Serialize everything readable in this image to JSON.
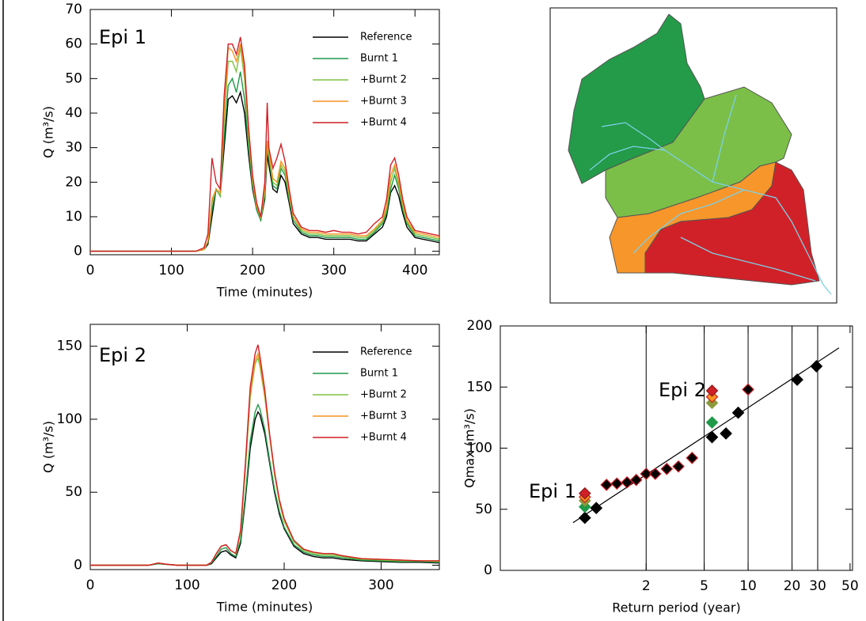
{
  "chart_data": [
    {
      "type": "line",
      "xlabel": "Time (minutes)",
      "ylabel": "Q (m³/s)",
      "annotations": [
        "Epi 1"
      ],
      "xlim": [
        0,
        430
      ],
      "xticks": [
        0,
        100,
        200,
        300,
        400
      ],
      "ylim": [
        -1,
        70
      ],
      "yticks": [
        0,
        10,
        20,
        30,
        40,
        50,
        60,
        70
      ],
      "x": [
        0,
        100,
        130,
        140,
        145,
        150,
        155,
        160,
        165,
        170,
        175,
        180,
        185,
        190,
        195,
        200,
        205,
        210,
        215,
        218,
        220,
        225,
        230,
        235,
        240,
        245,
        250,
        260,
        270,
        280,
        290,
        300,
        310,
        320,
        330,
        340,
        350,
        360,
        365,
        370,
        375,
        380,
        385,
        390,
        400,
        410,
        420,
        430
      ],
      "series": [
        {
          "name": "Reference",
          "color": "#000000",
          "values": [
            0,
            0,
            0,
            0.5,
            2,
            10,
            18,
            16,
            30,
            44,
            45,
            43,
            46,
            40,
            28,
            18,
            12,
            9,
            15,
            28,
            25,
            18,
            17,
            22,
            20,
            14,
            8,
            5,
            4,
            4,
            3.5,
            3.5,
            3.5,
            3.5,
            3,
            3,
            5,
            7,
            10,
            17,
            19,
            16,
            11,
            7,
            4,
            3.5,
            3,
            2.5
          ]
        },
        {
          "name": "Burnt 1",
          "color": "#1e9a48",
          "values": [
            0,
            0,
            0,
            0.5,
            2.5,
            12,
            18,
            16,
            33,
            48,
            50,
            46,
            52,
            44,
            30,
            19,
            12,
            9,
            16,
            30,
            27,
            19,
            18,
            24,
            22,
            15,
            9,
            5.5,
            4.5,
            4.5,
            4,
            4,
            4,
            4,
            3.5,
            3.5,
            5.5,
            8,
            11,
            18,
            22,
            18,
            12,
            8,
            4.5,
            4,
            3.5,
            3
          ]
        },
        {
          "name": "+Burnt 2",
          "color": "#7dc242",
          "values": [
            0,
            0,
            0,
            0.5,
            3,
            14,
            18,
            16,
            38,
            55,
            55,
            52,
            59,
            50,
            33,
            20,
            13,
            9.5,
            17,
            31,
            28,
            20,
            19,
            25,
            23,
            16,
            10,
            6,
            5,
            5,
            4.5,
            4.5,
            4.5,
            4.5,
            4,
            4,
            6,
            8.5,
            12,
            20,
            24,
            19,
            13,
            8.5,
            5,
            4.5,
            4,
            3.5
          ]
        },
        {
          "name": "+Burnt 3",
          "color": "#f7941d",
          "values": [
            0,
            0,
            0,
            0.5,
            3,
            15,
            18,
            17,
            40,
            59,
            58,
            55,
            60,
            52,
            35,
            21,
            13,
            10,
            18,
            32,
            29,
            21,
            20,
            26,
            24,
            17,
            10,
            6.5,
            5.5,
            5.5,
            5,
            5,
            5,
            5,
            4.5,
            4.5,
            6.5,
            9,
            13,
            22,
            25,
            20,
            14,
            9,
            5.5,
            5,
            4.5,
            4
          ]
        },
        {
          "name": "+Burnt 4",
          "color": "#d01f26",
          "values": [
            0,
            0,
            0,
            1,
            5,
            27,
            20,
            18,
            45,
            60,
            60,
            57,
            62,
            54,
            36,
            22,
            14,
            10,
            20,
            43,
            30,
            24,
            27,
            31,
            26,
            18,
            11,
            7,
            6,
            6,
            5.5,
            6,
            5.5,
            5.5,
            5,
            5.5,
            8,
            10,
            15,
            25,
            27,
            22,
            15,
            10,
            6,
            5.5,
            5,
            4.5
          ]
        }
      ]
    },
    {
      "type": "line",
      "xlabel": "Time (minutes)",
      "ylabel": "Q (m³/s)",
      "annotations": [
        "Epi 2"
      ],
      "xlim": [
        0,
        360
      ],
      "xticks": [
        0,
        100,
        200,
        300
      ],
      "ylim": [
        -3,
        165
      ],
      "yticks": [
        0,
        50,
        100,
        150
      ],
      "x": [
        0,
        60,
        70,
        80,
        90,
        100,
        120,
        125,
        130,
        135,
        140,
        145,
        150,
        155,
        160,
        165,
        170,
        173,
        175,
        180,
        185,
        190,
        195,
        200,
        210,
        220,
        230,
        240,
        250,
        260,
        280,
        300,
        320,
        340,
        360
      ],
      "series": [
        {
          "name": "Reference",
          "color": "#000000",
          "values": [
            0,
            0,
            1,
            0.5,
            0,
            0,
            0,
            1,
            5,
            9,
            10,
            7,
            5,
            15,
            45,
            80,
            100,
            105,
            103,
            90,
            70,
            50,
            35,
            25,
            13,
            8,
            6,
            5,
            5,
            4,
            3,
            2.5,
            2,
            2,
            1.5
          ]
        },
        {
          "name": "Burnt 1",
          "color": "#1e9a48",
          "values": [
            0,
            0,
            1,
            0.5,
            0,
            0,
            0,
            1.5,
            6,
            11,
            12,
            8,
            6,
            17,
            48,
            85,
            105,
            110,
            107,
            93,
            72,
            52,
            37,
            26,
            14,
            9,
            7,
            6,
            6,
            5,
            3.5,
            3,
            2.5,
            2.5,
            2
          ]
        },
        {
          "name": "+Burnt 2",
          "color": "#7dc242",
          "values": [
            0,
            0,
            1.5,
            0.5,
            0,
            0,
            0,
            2,
            8,
            13,
            14,
            10,
            8,
            22,
            65,
            115,
            138,
            142,
            136,
            115,
            88,
            62,
            43,
            30,
            16,
            10,
            8,
            7,
            7,
            6,
            4,
            3.5,
            3,
            3,
            2.5
          ]
        },
        {
          "name": "+Burnt 3",
          "color": "#f7941d",
          "values": [
            0,
            0,
            1.5,
            0.5,
            0,
            0,
            0,
            2,
            8,
            13,
            14,
            10,
            8,
            23,
            68,
            118,
            140,
            145,
            139,
            117,
            89,
            63,
            44,
            31,
            17,
            11,
            9,
            8,
            8,
            6.5,
            4.5,
            4,
            3.5,
            3,
            3
          ]
        },
        {
          "name": "+Burnt 4",
          "color": "#d01f26",
          "values": [
            0,
            0,
            1.5,
            0.5,
            0,
            0,
            0,
            2,
            8,
            13,
            14,
            10,
            8,
            24,
            70,
            122,
            145,
            151,
            143,
            120,
            90,
            64,
            45,
            32,
            17,
            11,
            9,
            8,
            8,
            6.5,
            4.5,
            4,
            3.5,
            3,
            3
          ]
        }
      ]
    },
    {
      "type": "scatter",
      "xlabel": "Return period (year)",
      "ylabel": "Qmax (m³/s)",
      "annotations": [
        "Epi 1",
        "Epi 2"
      ],
      "xlog": true,
      "xlim": [
        0.2,
        52
      ],
      "xticks": [
        2,
        5,
        10,
        20,
        30,
        50
      ],
      "vlines": [
        2,
        5,
        10,
        20,
        30
      ],
      "ylim": [
        0,
        200
      ],
      "yticks": [
        0,
        50,
        100,
        150,
        200
      ],
      "series": [
        {
          "color": "#000000",
          "edgecolor": "#000000",
          "x": [
            0.76,
            0.91,
            5.66,
            7.05,
            8.55,
            21.7,
            29.4
          ],
          "values": [
            43,
            51,
            109,
            112,
            129,
            156,
            167
          ]
        },
        {
          "color": "#000000",
          "edgecolor": "#d01f26",
          "x": [
            1.07,
            1.26,
            1.48,
            1.71,
            2.0,
            2.31,
            2.77,
            3.33,
            4.13,
            10
          ],
          "values": [
            70,
            71,
            72,
            74,
            79,
            79,
            83,
            85,
            92,
            148
          ]
        },
        {
          "color": "#1e9a48",
          "edgecolor": "#1e9a48",
          "x": [
            0.76,
            5.66
          ],
          "values": [
            52,
            121
          ]
        },
        {
          "color": "#8c9a3a",
          "edgecolor": "#8c9a3a",
          "x": [
            0.76,
            5.66
          ],
          "values": [
            57,
            137
          ]
        },
        {
          "color": "#f7941d",
          "edgecolor": "#d01f26",
          "x": [
            0.76,
            5.66
          ],
          "values": [
            60,
            142
          ]
        },
        {
          "color": "#d01f26",
          "edgecolor": "#8b1a1a",
          "x": [
            0.76,
            5.66
          ],
          "values": [
            63,
            147
          ]
        }
      ],
      "fit": {
        "color": "#000000",
        "x": [
          0.63,
          42
        ],
        "values": [
          39,
          182
        ]
      }
    }
  ]
}
